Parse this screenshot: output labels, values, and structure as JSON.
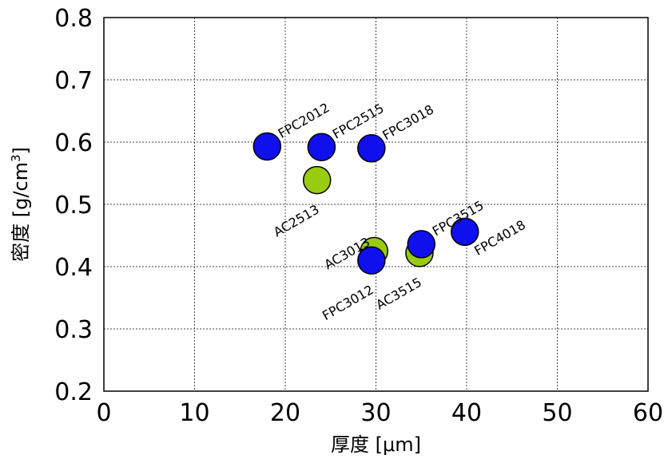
{
  "chart_data": {
    "type": "scatter",
    "xlabel": "厚度 [μm]",
    "ylabel_main": "密度 [g/cm",
    "ylabel_sup": "3",
    "ylabel_end": "]",
    "xlim": [
      0,
      60
    ],
    "ylim": [
      0.2,
      0.8
    ],
    "x_ticks": [
      "0",
      "10",
      "20",
      "30",
      "40",
      "50",
      "60"
    ],
    "y_ticks": [
      "0.2",
      "0.3",
      "0.4",
      "0.5",
      "0.6",
      "0.7",
      "0.8"
    ],
    "grid": true,
    "colors": {
      "FPC": "#1010ee",
      "AC": "#99cc11"
    },
    "points": [
      {
        "label": "FPC2012",
        "x": 18,
        "y": 0.593,
        "group": "FPC",
        "label_pos": "upper-right"
      },
      {
        "label": "FPC2515",
        "x": 24,
        "y": 0.592,
        "group": "FPC",
        "label_pos": "upper-right"
      },
      {
        "label": "FPC3018",
        "x": 29.5,
        "y": 0.59,
        "group": "FPC",
        "label_pos": "upper-right"
      },
      {
        "label": "AC2513",
        "x": 23.5,
        "y": 0.539,
        "group": "AC",
        "label_pos": "lower-left"
      },
      {
        "label": "AC3013",
        "x": 29.8,
        "y": 0.425,
        "group": "AC",
        "label_pos": "upper-left"
      },
      {
        "label": "AC3515",
        "x": 34.8,
        "y": 0.422,
        "group": "AC",
        "label_pos": "lower-left"
      },
      {
        "label": "FPC3012",
        "x": 29.5,
        "y": 0.41,
        "group": "FPC",
        "label_pos": "lower-left"
      },
      {
        "label": "FPC3515",
        "x": 35,
        "y": 0.436,
        "group": "FPC",
        "label_pos": "upper-right"
      },
      {
        "label": "FPC4018",
        "x": 39.8,
        "y": 0.456,
        "group": "FPC",
        "label_pos": "lower-right"
      }
    ]
  }
}
